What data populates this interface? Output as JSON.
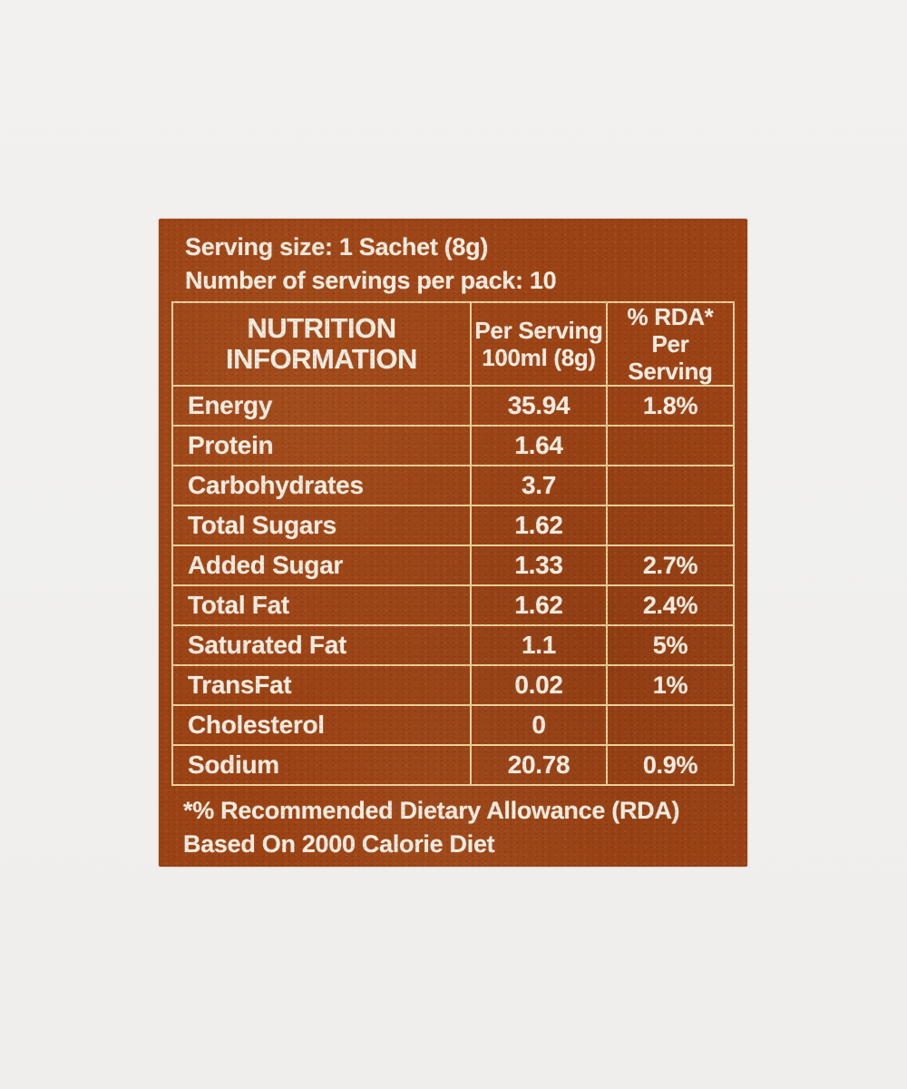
{
  "page": {
    "background_color": "#f0efed"
  },
  "label": {
    "background_color": "#9c4316",
    "text_color": "#f2ece0",
    "grid_line_color": "#eedca5",
    "serving_size_line": "Serving size: 1 Sachet (8g)",
    "servings_per_pack_line": "Number of servings per pack: 10",
    "footnote_line1": "*% Recommended Dietary Allowance (RDA)",
    "footnote_line2": "Based On 2000 Calorie Diet"
  },
  "table": {
    "header": {
      "col1_line1": "NUTRITION",
      "col1_line2": "INFORMATION",
      "col2_line1": "Per Serving",
      "col2_line2": "100ml (8g)",
      "col3_line1": "% RDA*",
      "col3_line2": "Per Serving"
    },
    "rows": [
      {
        "name": "Energy",
        "per_serving": "35.94",
        "rda": "1.8%"
      },
      {
        "name": "Protein",
        "per_serving": "1.64",
        "rda": ""
      },
      {
        "name": "Carbohydrates",
        "per_serving": "3.7",
        "rda": ""
      },
      {
        "name": "Total Sugars",
        "per_serving": "1.62",
        "rda": ""
      },
      {
        "name": "Added Sugar",
        "per_serving": "1.33",
        "rda": "2.7%"
      },
      {
        "name": "Total Fat",
        "per_serving": "1.62",
        "rda": "2.4%"
      },
      {
        "name": "Saturated Fat",
        "per_serving": "1.1",
        "rda": "5%"
      },
      {
        "name": "TransFat",
        "per_serving": "0.02",
        "rda": "1%"
      },
      {
        "name": "Cholesterol",
        "per_serving": "0",
        "rda": ""
      },
      {
        "name": "Sodium",
        "per_serving": "20.78",
        "rda": "0.9%"
      }
    ]
  }
}
